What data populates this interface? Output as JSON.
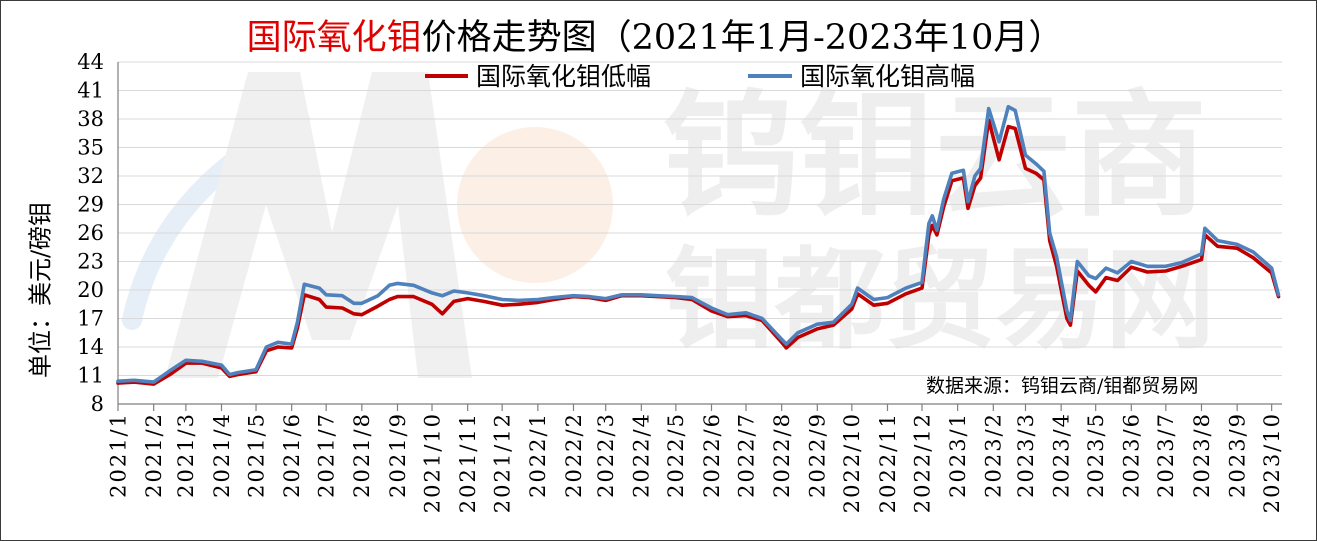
{
  "watermark": {
    "line1": "钨钼云商",
    "line2": "钼都贸易网"
  },
  "chart_data": {
    "type": "line",
    "title_parts": [
      {
        "text": "国际氧化钼",
        "color": "#e00000"
      },
      {
        "text": "价格走势图（2021年1月-2023年10月）",
        "color": "#000000"
      }
    ],
    "xlabel": "",
    "ylabel": "单位：美元/磅钼",
    "source": "数据来源：钨钼云商/钼都贸易网",
    "ylim": [
      8,
      44
    ],
    "yticks": [
      8,
      11,
      14,
      17,
      20,
      23,
      26,
      29,
      32,
      35,
      38,
      41,
      44
    ],
    "xlim": [
      "2021-01-01",
      "2023-10-10"
    ],
    "xticks": [
      "2021/1",
      "2021/2",
      "2021/3",
      "2021/4",
      "2021/5",
      "2021/6",
      "2021/7",
      "2021/8",
      "2021/9",
      "2021/10",
      "2021/11",
      "2021/12",
      "2022/1",
      "2022/2",
      "2022/3",
      "2022/4",
      "2022/5",
      "2022/6",
      "2022/7",
      "2022/8",
      "2022/9",
      "2022/10",
      "2022/11",
      "2022/12",
      "2023/1",
      "2023/2",
      "2023/3",
      "2023/4",
      "2023/5",
      "2023/6",
      "2023/7",
      "2023/8",
      "2023/9",
      "2023/10"
    ],
    "grid": true,
    "legend": "top",
    "x": [
      "2021-01-01",
      "2021-01-15",
      "2021-02-01",
      "2021-02-15",
      "2021-03-01",
      "2021-03-15",
      "2021-04-01",
      "2021-04-08",
      "2021-04-15",
      "2021-05-01",
      "2021-05-10",
      "2021-05-20",
      "2021-06-01",
      "2021-06-06",
      "2021-06-12",
      "2021-06-25",
      "2021-07-01",
      "2021-07-15",
      "2021-07-25",
      "2021-08-01",
      "2021-08-15",
      "2021-08-25",
      "2021-09-01",
      "2021-09-15",
      "2021-10-01",
      "2021-10-10",
      "2021-10-20",
      "2021-11-01",
      "2021-11-15",
      "2021-12-01",
      "2021-12-15",
      "2022-01-01",
      "2022-01-15",
      "2022-02-01",
      "2022-02-15",
      "2022-03-01",
      "2022-03-15",
      "2022-04-01",
      "2022-04-15",
      "2022-05-01",
      "2022-05-15",
      "2022-06-01",
      "2022-06-15",
      "2022-07-01",
      "2022-07-15",
      "2022-08-01",
      "2022-08-05",
      "2022-08-15",
      "2022-09-01",
      "2022-09-15",
      "2022-10-01",
      "2022-10-06",
      "2022-10-20",
      "2022-11-01",
      "2022-11-17",
      "2022-12-01",
      "2022-12-07",
      "2022-12-10",
      "2022-12-14",
      "2022-12-20",
      "2022-12-27",
      "2023-01-06",
      "2023-01-10",
      "2023-01-16",
      "2023-01-21",
      "2023-01-28",
      "2023-02-06",
      "2023-02-14",
      "2023-02-20",
      "2023-03-01",
      "2023-03-10",
      "2023-03-17",
      "2023-03-22",
      "2023-03-28",
      "2023-04-06",
      "2023-04-09",
      "2023-04-15",
      "2023-04-25",
      "2023-05-01",
      "2023-05-10",
      "2023-05-20",
      "2023-06-01",
      "2023-06-15",
      "2023-07-01",
      "2023-07-15",
      "2023-08-01",
      "2023-08-04",
      "2023-08-15",
      "2023-09-01",
      "2023-09-15",
      "2023-10-01",
      "2023-10-07"
    ],
    "series": [
      {
        "name": "国际氧化钼低幅",
        "color": "#c00000",
        "values": [
          10.2,
          10.3,
          10.1,
          11.1,
          12.3,
          12.3,
          11.8,
          10.9,
          11.1,
          11.4,
          13.6,
          14.0,
          13.9,
          16.0,
          19.5,
          19.0,
          18.2,
          18.1,
          17.5,
          17.4,
          18.3,
          19.0,
          19.3,
          19.3,
          18.5,
          17.5,
          18.8,
          19.1,
          18.8,
          18.4,
          18.5,
          18.7,
          19.0,
          19.3,
          19.2,
          18.9,
          19.4,
          19.4,
          19.3,
          19.2,
          19.0,
          17.8,
          17.2,
          17.3,
          16.8,
          14.5,
          13.9,
          15.0,
          15.9,
          16.3,
          18.0,
          19.6,
          18.4,
          18.6,
          19.6,
          20.2,
          25.8,
          26.8,
          25.8,
          28.8,
          31.5,
          31.8,
          28.6,
          31.0,
          31.8,
          37.9,
          33.7,
          37.2,
          37.0,
          32.8,
          32.3,
          31.6,
          25.2,
          22.5,
          17.0,
          16.3,
          22.0,
          20.5,
          19.8,
          21.3,
          21.0,
          22.4,
          21.9,
          22.0,
          22.5,
          23.2,
          25.8,
          24.6,
          24.4,
          23.4,
          21.8,
          19.3
        ]
      },
      {
        "name": "国际氧化钼高幅",
        "color": "#4f81bd",
        "values": [
          10.4,
          10.5,
          10.3,
          11.5,
          12.6,
          12.5,
          12.1,
          11.1,
          11.3,
          11.6,
          14.0,
          14.5,
          14.3,
          16.6,
          20.6,
          20.2,
          19.5,
          19.4,
          18.6,
          18.6,
          19.4,
          20.5,
          20.7,
          20.5,
          19.7,
          19.4,
          19.9,
          19.7,
          19.4,
          19.0,
          18.9,
          19.0,
          19.2,
          19.4,
          19.3,
          19.1,
          19.5,
          19.5,
          19.4,
          19.3,
          19.2,
          18.1,
          17.4,
          17.6,
          17.0,
          14.8,
          14.3,
          15.5,
          16.4,
          16.6,
          18.5,
          20.2,
          19.0,
          19.2,
          20.2,
          20.8,
          27.0,
          27.8,
          26.3,
          29.6,
          32.3,
          32.6,
          29.3,
          32.0,
          32.8,
          39.1,
          35.6,
          39.3,
          38.9,
          34.2,
          33.3,
          32.5,
          26.0,
          23.5,
          17.8,
          16.8,
          23.0,
          21.5,
          21.2,
          22.3,
          21.8,
          23.0,
          22.5,
          22.5,
          22.9,
          23.8,
          26.5,
          25.2,
          24.8,
          24.0,
          22.3,
          19.5
        ]
      }
    ]
  }
}
